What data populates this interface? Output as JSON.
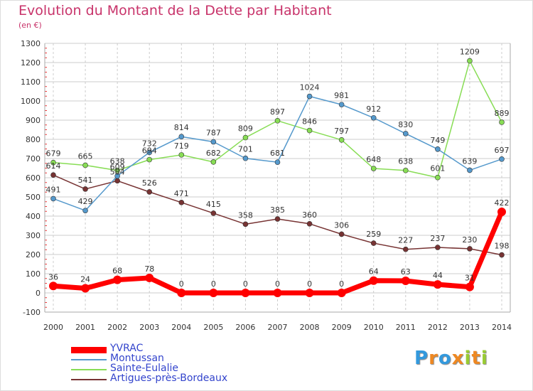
{
  "chart_data": {
    "type": "line",
    "title": "Evolution du Montant de la Dette par Habitant",
    "subtitle": "(en €)",
    "xlabel": "",
    "ylabel": "",
    "x": [
      "2000",
      "2001",
      "2002",
      "2003",
      "2004",
      "2005",
      "2006",
      "2007",
      "2008",
      "2009",
      "2010",
      "2011",
      "2012",
      "2013",
      "2014"
    ],
    "ylim": [
      -100,
      1300
    ],
    "yticks": [
      -100,
      0,
      100,
      200,
      300,
      400,
      500,
      600,
      700,
      800,
      900,
      1000,
      1100,
      1200,
      1300
    ],
    "grid": true,
    "legend": "bottom-left",
    "series": [
      {
        "name": "YVRAC",
        "color": "#ff0000",
        "values": [
          36,
          24,
          68,
          78,
          0,
          0,
          0,
          0,
          0,
          0,
          64,
          63,
          44,
          31,
          422
        ],
        "labels": [
          "36",
          "24",
          "68",
          "78",
          "0",
          "0",
          "0",
          "0",
          "0",
          "0",
          "64",
          "63",
          "44",
          "31",
          "422"
        ]
      },
      {
        "name": "Montussan",
        "color": "#5599cc",
        "values": [
          491,
          429,
          609,
          732,
          814,
          787,
          701,
          681,
          1024,
          981,
          912,
          830,
          749,
          639,
          697
        ],
        "labels": [
          "491",
          "429",
          "609",
          "732",
          "814",
          "787",
          "701",
          "681",
          "1024",
          "981",
          "912",
          "830",
          "749",
          "639",
          "697"
        ]
      },
      {
        "name": "Sainte-Eulalie",
        "color": "#88dd55",
        "values": [
          679,
          665,
          638,
          694,
          719,
          682,
          809,
          897,
          846,
          797,
          648,
          638,
          601,
          1209,
          889
        ],
        "labels": [
          "679",
          "665",
          "638",
          "694",
          "719",
          "682",
          "809",
          "897",
          "846",
          "797",
          "648",
          "638",
          "601",
          "1209",
          "889"
        ]
      },
      {
        "name": "Artigues-près-Bordeaux",
        "color": "#773333",
        "values": [
          614,
          541,
          584,
          526,
          471,
          415,
          358,
          385,
          360,
          306,
          259,
          227,
          237,
          230,
          198
        ],
        "labels": [
          "614",
          "541",
          "584",
          "526",
          "471",
          "415",
          "358",
          "385",
          "360",
          "306",
          "259",
          "227",
          "237",
          "230",
          "198"
        ]
      }
    ]
  },
  "logo": {
    "letters": [
      "P",
      "r",
      "o",
      "x",
      "i",
      "t",
      "i"
    ],
    "colors": [
      "#3399dd",
      "#ee8822",
      "#3399dd",
      "#ee8822",
      "#99cc33",
      "#ee8822",
      "#99cc33"
    ]
  }
}
